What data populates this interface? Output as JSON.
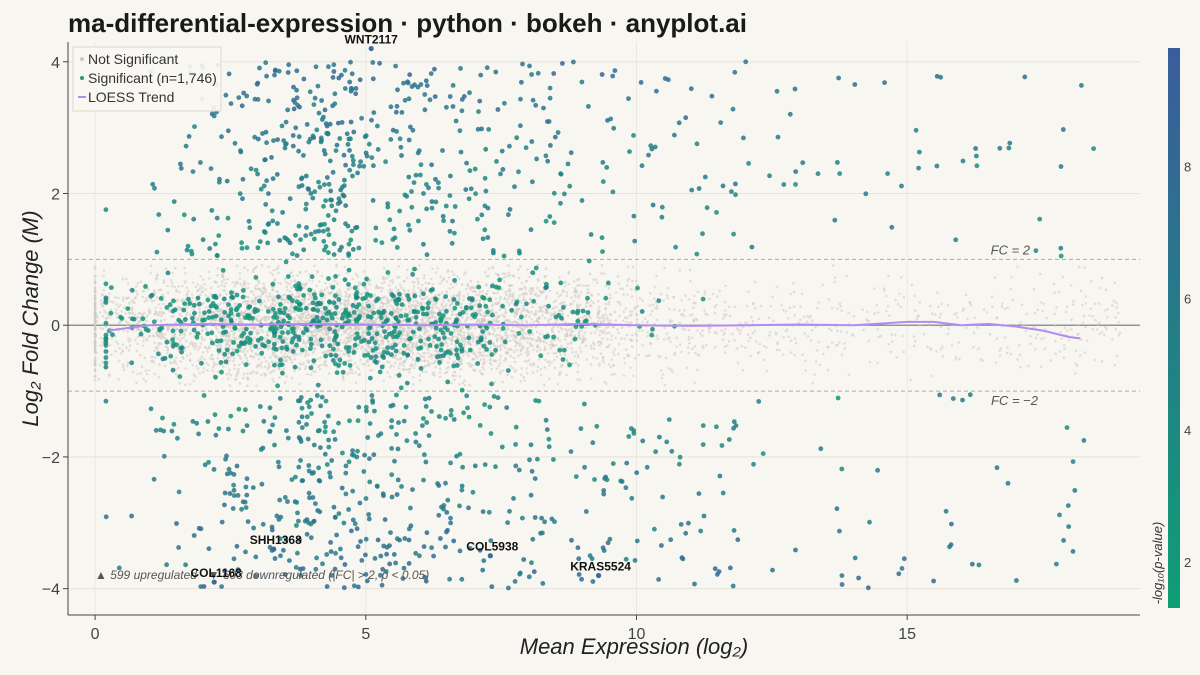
{
  "title": "ma-differential-expression · python · bokeh · anyplot.ai",
  "colors": {
    "background": "#f8f6f1",
    "not_significant": "#cfc9c2",
    "loess": "#b48cf0",
    "colormap_low": "#0e9e74",
    "colormap_high": "#3b5c9c",
    "zero_line": "#777777",
    "threshold_line": "#aaaaaa"
  },
  "legend": {
    "placement": "top-left",
    "items": [
      {
        "label": "Not Significant",
        "marker": "dot",
        "color": "#cfc9c2"
      },
      {
        "label": "Significant (n=1,746)",
        "marker": "dot",
        "color": "#1e9c7a"
      },
      {
        "label": "LOESS Trend",
        "marker": "line",
        "color": "#b48cf0"
      }
    ]
  },
  "annotations": {
    "fc_up": "FC = 2",
    "fc_down": "FC = −2",
    "summary": "▲ 599 upregulated  ·  ▼ 603 downregulated  (|FC| > 2, p < 0.05)"
  },
  "colorbar": {
    "title": "-log₁₀(p-value)",
    "ticks": [
      2,
      4,
      6,
      8
    ],
    "range": [
      1.3,
      9.8
    ]
  },
  "chart_data": {
    "type": "scatter",
    "title": "ma-differential-expression · python · bokeh · anyplot.ai",
    "xlabel": "Mean Expression (log₂)",
    "ylabel": "Log₂ Fold Change (M)",
    "xlim": [
      -0.5,
      19.3
    ],
    "ylim": [
      -4.4,
      4.3
    ],
    "xticks": [
      0,
      5,
      10,
      15
    ],
    "yticks": [
      -4,
      -2,
      0,
      2,
      4
    ],
    "grid": true,
    "thresholds": [
      1,
      -1
    ],
    "series": [
      {
        "name": "Not Significant",
        "count_approx": 8000,
        "x_range": [
          0,
          19
        ],
        "y_range": [
          -0.9,
          0.9
        ],
        "description_color": "#cfc9c2"
      },
      {
        "name": "Significant (n=1,746)",
        "count": 1746
      },
      {
        "name": "LOESS Trend",
        "x": [
          0.25,
          1,
          2,
          3,
          4,
          5,
          6,
          7,
          8,
          9,
          10,
          11,
          12,
          13,
          14,
          15,
          15.5,
          16,
          16.5,
          17,
          17.5,
          18,
          18.2
        ],
        "y": [
          -0.08,
          0.0,
          0.02,
          0.01,
          0.02,
          0.01,
          0.0,
          0.01,
          0.0,
          0.02,
          0.0,
          -0.01,
          0.0,
          0.01,
          0.0,
          0.05,
          0.05,
          0.0,
          0.02,
          -0.02,
          -0.08,
          -0.18,
          -0.2
        ]
      }
    ],
    "labeled_genes": [
      {
        "name": "WNT2117",
        "x": 5.1,
        "y": 4.2
      },
      {
        "name": "SHH1368",
        "x": 3.3,
        "y": -3.4
      },
      {
        "name": "COL5938",
        "x": 7.3,
        "y": -3.5
      },
      {
        "name": "KRAS5524",
        "x": 9.3,
        "y": -3.8
      },
      {
        "name": "COL1168",
        "x": 2.2,
        "y": -3.9
      }
    ]
  }
}
